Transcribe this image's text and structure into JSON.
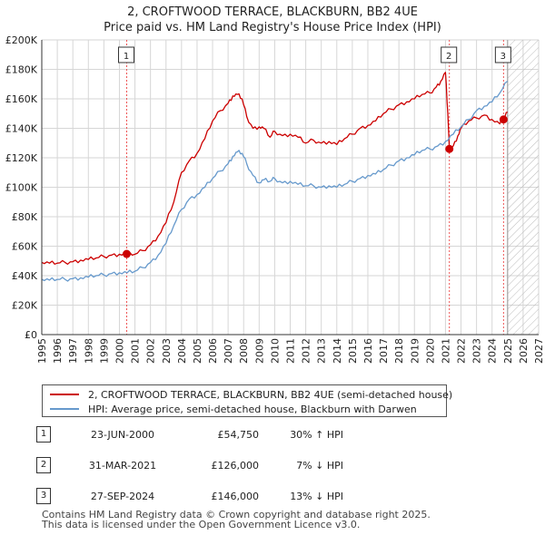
{
  "title": {
    "line1": "2, CROFTWOOD TERRACE, BLACKBURN, BB2 4UE",
    "line2": "Price paid vs. HM Land Registry's House Price Index (HPI)"
  },
  "colors": {
    "price_line": "#cc0000",
    "hpi_line": "#6699cc",
    "marker_vline": "#ee5555",
    "grid": "#d6d6d6",
    "hatch": "#bbbbbb"
  },
  "chart_data": {
    "type": "line",
    "xlim": [
      1995,
      2027
    ],
    "ylim": [
      0,
      200000
    ],
    "xticks": [
      "1995",
      "1996",
      "1997",
      "1998",
      "1999",
      "2000",
      "2001",
      "2002",
      "2003",
      "2004",
      "2005",
      "2006",
      "2007",
      "2008",
      "2009",
      "2010",
      "2011",
      "2012",
      "2013",
      "2014",
      "2015",
      "2016",
      "2017",
      "2018",
      "2019",
      "2020",
      "2021",
      "2022",
      "2023",
      "2024",
      "2025",
      "2026",
      "2027"
    ],
    "yticks": [
      "£0",
      "£20K",
      "£40K",
      "£60K",
      "£80K",
      "£100K",
      "£120K",
      "£140K",
      "£160K",
      "£180K",
      "£200K"
    ],
    "ytick_values": [
      0,
      20000,
      40000,
      60000,
      80000,
      100000,
      120000,
      140000,
      160000,
      180000,
      200000
    ],
    "hatch_from": 2025.0,
    "series": [
      {
        "name": "2, CROFTWOOD TERRACE, BLACKBURN, BB2 4UE (semi-detached house)",
        "color": "#cc0000",
        "x": [
          1995.0,
          1995.5,
          1996.0,
          1996.5,
          1997.0,
          1997.5,
          1998.0,
          1998.5,
          1999.0,
          1999.5,
          2000.0,
          2000.47,
          2001.0,
          2001.5,
          2002.0,
          2002.5,
          2003.0,
          2003.5,
          2004.0,
          2004.5,
          2005.0,
          2005.5,
          2006.0,
          2006.5,
          2007.0,
          2007.3,
          2007.6,
          2007.9,
          2008.2,
          2008.6,
          2009.0,
          2009.3,
          2009.7,
          2010.0,
          2010.5,
          2011.0,
          2011.5,
          2012.0,
          2012.5,
          2013.0,
          2013.5,
          2014.0,
          2014.5,
          2015.0,
          2015.5,
          2016.0,
          2016.5,
          2017.0,
          2017.5,
          2018.0,
          2018.5,
          2019.0,
          2019.5,
          2020.0,
          2020.4,
          2020.7,
          2021.0,
          2021.15,
          2021.25,
          2021.5,
          2021.8,
          2022.0,
          2022.5,
          2023.0,
          2023.5,
          2024.0,
          2024.5,
          2024.74,
          2025.0
        ],
        "values": [
          49000,
          48500,
          48500,
          49000,
          49500,
          50500,
          51000,
          52000,
          53000,
          54000,
          54500,
          54750,
          54500,
          57000,
          61000,
          67000,
          76000,
          90000,
          110000,
          118000,
          123000,
          133000,
          145000,
          152000,
          157000,
          162000,
          163000,
          160000,
          148000,
          140000,
          141000,
          140000,
          134000,
          138000,
          135000,
          136000,
          134000,
          130000,
          132000,
          130000,
          131000,
          129000,
          133000,
          136000,
          140000,
          142000,
          145000,
          150000,
          153000,
          156000,
          158000,
          160000,
          163000,
          164000,
          168000,
          172000,
          178000,
          150000,
          126000,
          128000,
          135000,
          140000,
          145000,
          147000,
          149000,
          146000,
          143000,
          146000,
          151000
        ]
      },
      {
        "name": "HPI: Average price, semi-detached house, Blackburn with Darwen",
        "color": "#6699cc",
        "x": [
          1995.0,
          1995.5,
          1996.0,
          1996.5,
          1997.0,
          1997.5,
          1998.0,
          1998.5,
          1999.0,
          1999.5,
          2000.0,
          2000.5,
          2001.0,
          2001.5,
          2002.0,
          2002.5,
          2003.0,
          2003.5,
          2004.0,
          2004.5,
          2005.0,
          2005.5,
          2006.0,
          2006.5,
          2007.0,
          2007.3,
          2007.6,
          2007.9,
          2008.2,
          2008.6,
          2009.0,
          2009.3,
          2009.7,
          2010.0,
          2010.5,
          2011.0,
          2011.5,
          2012.0,
          2012.5,
          2013.0,
          2013.5,
          2014.0,
          2014.5,
          2015.0,
          2015.5,
          2016.0,
          2016.5,
          2017.0,
          2017.5,
          2018.0,
          2018.5,
          2019.0,
          2019.5,
          2020.0,
          2020.5,
          2021.0,
          2021.5,
          2022.0,
          2022.5,
          2023.0,
          2023.5,
          2024.0,
          2024.5,
          2025.0
        ],
        "values": [
          37500,
          37000,
          37500,
          37500,
          38000,
          38500,
          39000,
          40000,
          40500,
          41500,
          42000,
          42000,
          43000,
          45500,
          49000,
          54000,
          62000,
          74000,
          85000,
          92000,
          95000,
          100000,
          106000,
          111000,
          116000,
          121000,
          124000,
          123000,
          116000,
          108000,
          103000,
          105000,
          104000,
          106000,
          103000,
          104000,
          102000,
          101000,
          101000,
          100000,
          101000,
          100000,
          102000,
          104000,
          106000,
          108000,
          109000,
          112000,
          115000,
          118000,
          120000,
          122000,
          125000,
          126000,
          128000,
          131000,
          136000,
          141000,
          146000,
          152000,
          155000,
          158000,
          164000,
          172000
        ]
      }
    ],
    "annotations": [
      {
        "label": "1",
        "x": 2000.47,
        "price": 54750
      },
      {
        "label": "2",
        "x": 2021.25,
        "price": 126000
      },
      {
        "label": "3",
        "x": 2024.74,
        "price": 146000
      }
    ]
  },
  "legend": {
    "items": [
      {
        "label": "2, CROFTWOOD TERRACE, BLACKBURN, BB2 4UE (semi-detached house)",
        "color": "#cc0000"
      },
      {
        "label": "HPI: Average price, semi-detached house, Blackburn with Darwen",
        "color": "#6699cc"
      }
    ]
  },
  "sales": [
    {
      "num": "1",
      "date": "23-JUN-2000",
      "price": "£54,750",
      "hpi": "30% ↑ HPI"
    },
    {
      "num": "2",
      "date": "31-MAR-2021",
      "price": "£126,000",
      "hpi": "7% ↓ HPI"
    },
    {
      "num": "3",
      "date": "27-SEP-2024",
      "price": "£146,000",
      "hpi": "13% ↓ HPI"
    }
  ],
  "footer": {
    "line1": "Contains HM Land Registry data © Crown copyright and database right 2025.",
    "line2": "This data is licensed under the Open Government Licence v3.0."
  }
}
